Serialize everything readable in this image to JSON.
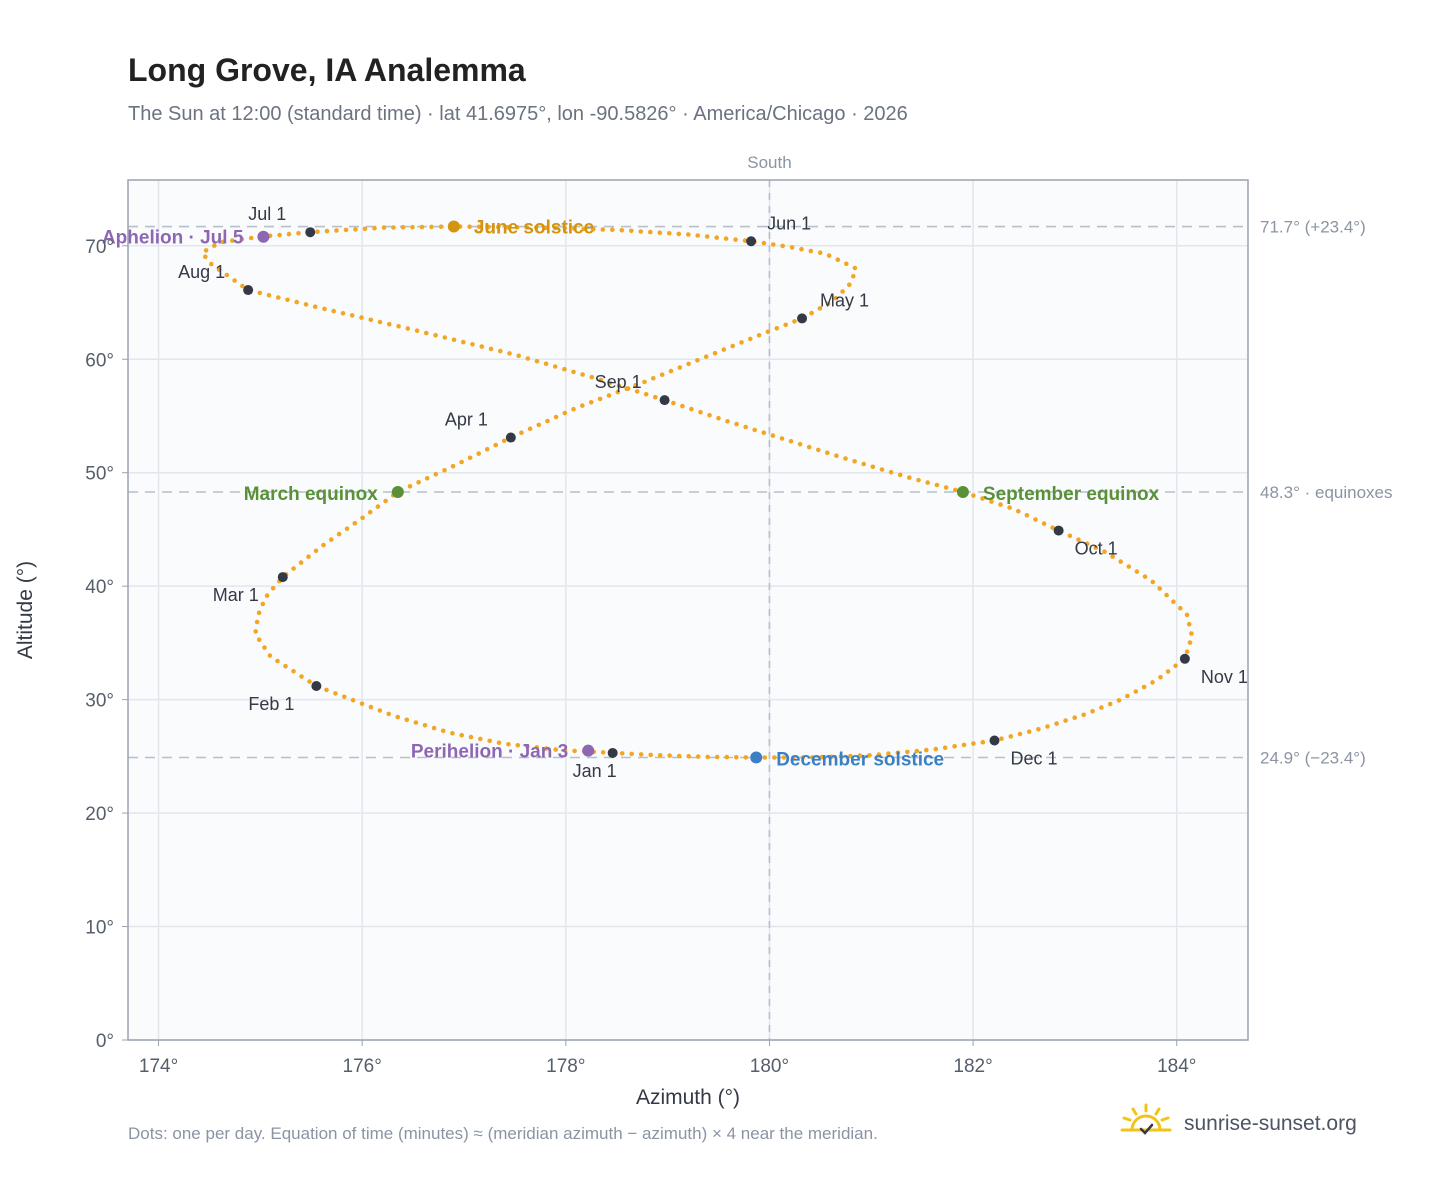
{
  "title": "Long Grove, IA Analemma",
  "subtitle": "The Sun at 12:00 (standard time) · lat 41.6975°, lon -90.5826° · America/Chicago · 2026",
  "footnote": "Dots: one per day. Equation of time (minutes) ≈ (meridian azimuth − azimuth) × 4 near the meridian.",
  "brand": {
    "name": "sunrise-sunset.org",
    "icon": "sun-logo-icon"
  },
  "colors": {
    "curve": "#f2a623",
    "month_dot": "#343a45",
    "june": "#d4940f",
    "december": "#3b7fc4",
    "equinox": "#5a9138",
    "perihelion": "#8e67b3",
    "plot_bg": "#f9fbfd",
    "grid": "#e2e7ee",
    "ref_line": "#b8c0cc"
  },
  "chart_data": {
    "type": "scatter",
    "xlabel": "Azimuth (°)",
    "ylabel": "Altitude (°)",
    "xlim": [
      173.7,
      184.7
    ],
    "ylim": [
      0,
      75.8
    ],
    "x_ticks": [
      174,
      176,
      178,
      180,
      182,
      184
    ],
    "x_tick_labels": [
      "174°",
      "176°",
      "178°",
      "180°",
      "182°",
      "184°"
    ],
    "y_ticks": [
      0,
      10,
      20,
      30,
      40,
      50,
      60,
      70
    ],
    "y_tick_labels": [
      "0°",
      "10°",
      "20°",
      "30°",
      "40°",
      "50°",
      "60°",
      "70°"
    ],
    "grid": true,
    "meridian": {
      "azimuth": 180,
      "label": "South"
    },
    "reference_lines": [
      {
        "altitude": 71.7,
        "label": "71.7° (+23.4°)"
      },
      {
        "altitude": 48.3,
        "label": "48.3° · equinoxes"
      },
      {
        "altitude": 24.9,
        "label": "24.9° (−23.4°)"
      }
    ],
    "daily_path": [
      [
        178.46,
        25.3
      ],
      [
        177.95,
        25.55
      ],
      [
        177.4,
        26.1
      ],
      [
        176.85,
        27.1
      ],
      [
        176.3,
        28.6
      ],
      [
        175.55,
        31.2
      ],
      [
        175.1,
        33.8
      ],
      [
        174.95,
        35.8
      ],
      [
        174.98,
        37.5
      ],
      [
        175.05,
        39.0
      ],
      [
        175.22,
        40.8
      ],
      [
        175.6,
        43.5
      ],
      [
        176.0,
        46.0
      ],
      [
        176.35,
        48.3
      ],
      [
        176.9,
        50.6
      ],
      [
        177.46,
        53.1
      ],
      [
        178.1,
        55.7
      ],
      [
        178.8,
        58.1
      ],
      [
        179.4,
        60.3
      ],
      [
        179.95,
        62.3
      ],
      [
        180.32,
        63.6
      ],
      [
        180.62,
        65.1
      ],
      [
        180.8,
        66.7
      ],
      [
        180.85,
        68.0
      ],
      [
        180.55,
        69.3
      ],
      [
        180.2,
        69.9
      ],
      [
        179.82,
        70.4
      ],
      [
        179.2,
        71.0
      ],
      [
        178.5,
        71.4
      ],
      [
        177.8,
        71.6
      ],
      [
        176.9,
        71.7
      ],
      [
        176.2,
        71.6
      ],
      [
        175.49,
        71.2
      ],
      [
        175.0,
        70.8
      ],
      [
        174.6,
        70.3
      ],
      [
        174.43,
        69.4
      ],
      [
        174.5,
        68.5
      ],
      [
        174.88,
        66.1
      ],
      [
        175.6,
        64.5
      ],
      [
        176.5,
        62.6
      ],
      [
        177.5,
        60.4
      ],
      [
        178.3,
        58.3
      ],
      [
        178.97,
        56.4
      ],
      [
        179.6,
        54.5
      ],
      [
        180.2,
        52.8
      ],
      [
        180.8,
        51.1
      ],
      [
        181.4,
        49.5
      ],
      [
        181.9,
        48.3
      ],
      [
        182.4,
        46.8
      ],
      [
        182.84,
        44.9
      ],
      [
        183.3,
        43.0
      ],
      [
        183.75,
        40.5
      ],
      [
        184.1,
        37.5
      ],
      [
        184.15,
        35.6
      ],
      [
        184.08,
        33.6
      ],
      [
        183.8,
        31.7
      ],
      [
        183.45,
        30.0
      ],
      [
        183.1,
        28.7
      ],
      [
        182.65,
        27.4
      ],
      [
        182.21,
        26.4
      ],
      [
        181.6,
        25.6
      ],
      [
        181.0,
        25.1
      ],
      [
        180.4,
        24.9
      ],
      [
        179.87,
        24.9
      ],
      [
        179.4,
        24.95
      ],
      [
        178.9,
        25.1
      ],
      [
        178.46,
        25.3
      ]
    ],
    "month_markers": [
      {
        "label": "Jan 1",
        "azimuth": 178.46,
        "altitude": 25.3
      },
      {
        "label": "Feb 1",
        "azimuth": 175.55,
        "altitude": 31.2
      },
      {
        "label": "Mar 1",
        "azimuth": 175.22,
        "altitude": 40.8
      },
      {
        "label": "Apr 1",
        "azimuth": 177.46,
        "altitude": 53.1
      },
      {
        "label": "May 1",
        "azimuth": 180.32,
        "altitude": 63.6
      },
      {
        "label": "Jun 1",
        "azimuth": 179.82,
        "altitude": 70.4
      },
      {
        "label": "Jul 1",
        "azimuth": 175.49,
        "altitude": 71.2
      },
      {
        "label": "Aug 1",
        "azimuth": 174.88,
        "altitude": 66.1
      },
      {
        "label": "Sep 1",
        "azimuth": 178.97,
        "altitude": 56.4
      },
      {
        "label": "Oct 1",
        "azimuth": 182.84,
        "altitude": 44.9
      },
      {
        "label": "Nov 1",
        "azimuth": 184.08,
        "altitude": 33.6
      },
      {
        "label": "Dec 1",
        "azimuth": 182.21,
        "altitude": 26.4
      }
    ],
    "events": [
      {
        "label": "June solstice",
        "azimuth": 176.9,
        "altitude": 71.7,
        "color": "#d4940f"
      },
      {
        "label": "December solstice",
        "azimuth": 179.87,
        "altitude": 24.9,
        "color": "#3b7fc4"
      },
      {
        "label": "March equinox",
        "azimuth": 176.35,
        "altitude": 48.3,
        "color": "#5a9138"
      },
      {
        "label": "September equinox",
        "azimuth": 181.9,
        "altitude": 48.3,
        "color": "#5a9138"
      },
      {
        "label": "Aphelion · Jul 5",
        "azimuth": 175.03,
        "altitude": 70.8,
        "color": "#8e67b3"
      },
      {
        "label": "Perihelion · Jan 3",
        "azimuth": 178.22,
        "altitude": 25.5,
        "color": "#8e67b3"
      }
    ]
  }
}
